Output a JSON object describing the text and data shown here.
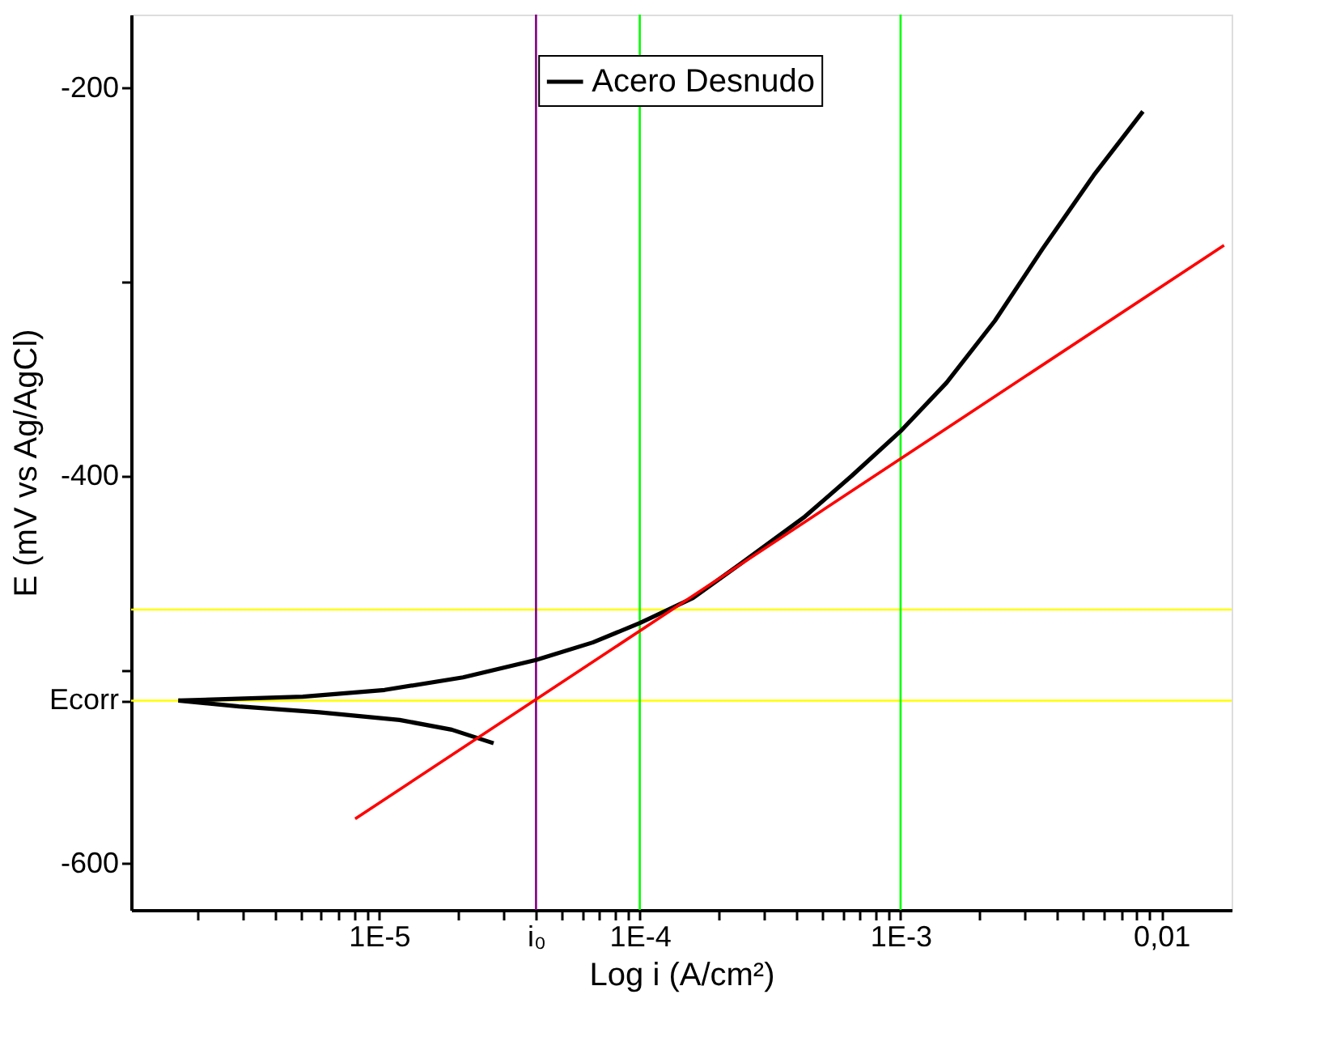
{
  "chart_data": {
    "type": "line",
    "xlabel": "Log i (A/cm²)",
    "ylabel": "E (mV vs Ag/AgCl)",
    "log": "x",
    "grid": false,
    "legend": "top",
    "line_style": "solid",
    "marker": "none",
    "xlim": [
      1.12e-06,
      0.0186
    ],
    "ylim": [
      -624,
      -162
    ],
    "xticks": [
      {
        "value": 2e-06,
        "label": null
      },
      {
        "value": 3e-06,
        "label": null
      },
      {
        "value": 4e-06,
        "label": null
      },
      {
        "value": 5e-06,
        "label": null
      },
      {
        "value": 6e-06,
        "label": null
      },
      {
        "value": 7e-06,
        "label": null
      },
      {
        "value": 8e-06,
        "label": null
      },
      {
        "value": 9e-06,
        "label": null
      },
      {
        "value": 1e-05,
        "label": "1E-5"
      },
      {
        "value": 2e-05,
        "label": null
      },
      {
        "value": 3e-05,
        "label": null
      },
      {
        "value": 4e-05,
        "label": "i₀"
      },
      {
        "value": 5e-05,
        "label": null
      },
      {
        "value": 6e-05,
        "label": null
      },
      {
        "value": 7e-05,
        "label": null
      },
      {
        "value": 8e-05,
        "label": null
      },
      {
        "value": 9e-05,
        "label": null
      },
      {
        "value": 0.0001,
        "label": "1E-4"
      },
      {
        "value": 0.0002,
        "label": null
      },
      {
        "value": 0.0003,
        "label": null
      },
      {
        "value": 0.0004,
        "label": null
      },
      {
        "value": 0.0005,
        "label": null
      },
      {
        "value": 0.0006,
        "label": null
      },
      {
        "value": 0.0007,
        "label": null
      },
      {
        "value": 0.0008,
        "label": null
      },
      {
        "value": 0.0009,
        "label": null
      },
      {
        "value": 0.001,
        "label": "1E-3"
      },
      {
        "value": 0.002,
        "label": null
      },
      {
        "value": 0.003,
        "label": null
      },
      {
        "value": 0.004,
        "label": null
      },
      {
        "value": 0.005,
        "label": null
      },
      {
        "value": 0.006,
        "label": null
      },
      {
        "value": 0.007,
        "label": null
      },
      {
        "value": 0.008,
        "label": null
      },
      {
        "value": 0.009,
        "label": null
      },
      {
        "value": 0.01,
        "label": "0,01"
      }
    ],
    "yticks": [
      -200,
      {
        "value": -300,
        "label": null
      },
      -400,
      {
        "value": -500,
        "label": null
      },
      {
        "value": -516,
        "label": "Ecorr"
      },
      -600
    ],
    "series": [
      {
        "name": "Acero Desnudo",
        "color": "#000000",
        "x": [
          1.7e-06,
          5.1e-06,
          1.05e-05,
          2.1e-05,
          4e-05,
          6.6e-05,
          0.0001,
          0.00016,
          0.00024,
          0.00043,
          0.00065,
          0.001,
          0.0015,
          0.0023,
          0.0035,
          0.0055,
          0.0085
        ],
        "values": [
          -516,
          -514,
          -510.5,
          -504,
          -495,
          -486,
          -476,
          -463,
          -446,
          -421,
          -400,
          -377,
          -352,
          -320,
          -283,
          -245,
          -212
        ]
      },
      {
        "color": "#000000",
        "x": [
          1.7e-06,
          2.9e-06,
          5.9e-06,
          1.2e-05,
          1.9e-05,
          2.75e-05
        ],
        "values": [
          -516,
          -519,
          -522,
          -526,
          -531,
          -538
        ]
      },
      {
        "type": "line",
        "color": "#ff0000",
        "x": [
          8.1e-06,
          0.0174
        ],
        "values": [
          -577,
          -281
        ]
      }
    ],
    "ref_lines": [
      {
        "axis": "y",
        "value": -469,
        "color": "#ffff00"
      },
      {
        "axis": "y",
        "value": -516,
        "color": "#ffff00"
      },
      {
        "axis": "x",
        "value": 4e-05,
        "color": "#800080"
      },
      {
        "axis": "x",
        "value": 0.0001,
        "color": "#00ff00"
      },
      {
        "axis": "x",
        "value": 0.001,
        "color": "#00ff00"
      }
    ]
  }
}
